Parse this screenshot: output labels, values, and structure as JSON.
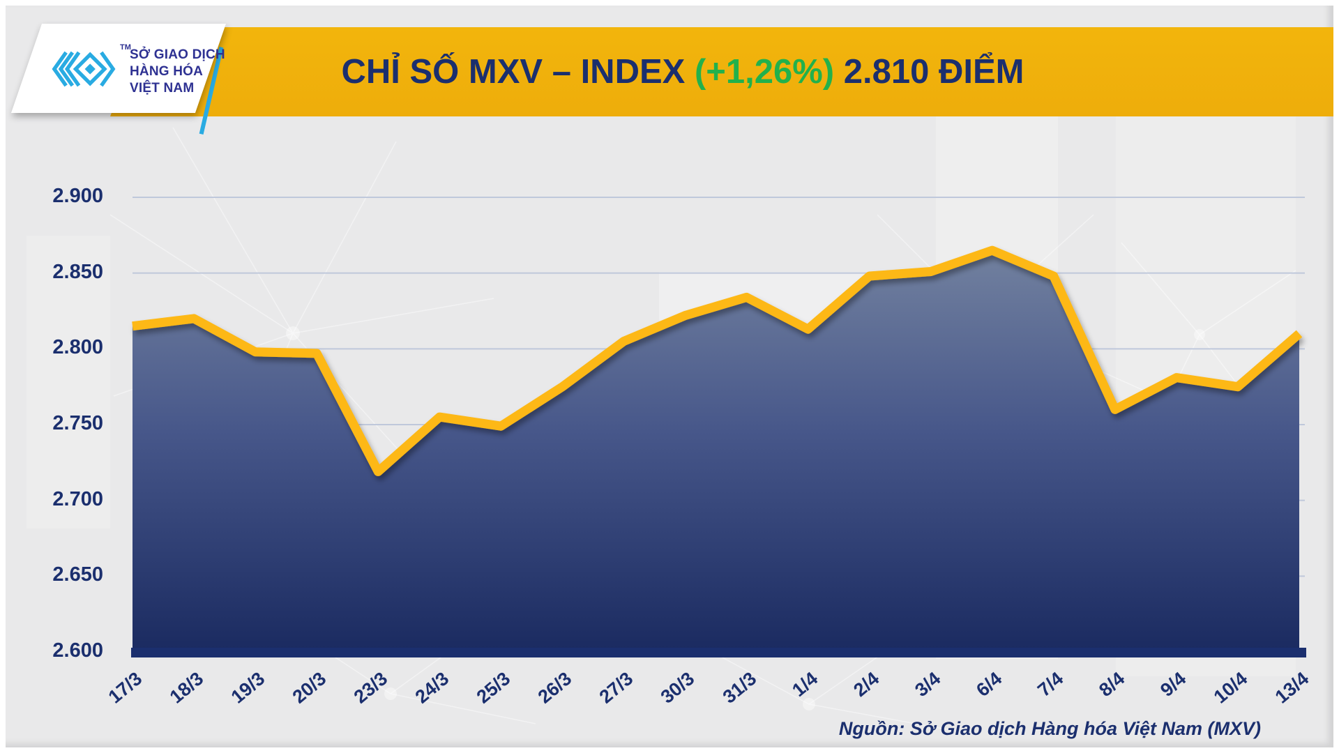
{
  "header": {
    "logo": {
      "tm": "TM",
      "line1": "SỞ GIAO DỊCH",
      "line2": "HÀNG HÓA",
      "line3": "VIỆT NAM"
    },
    "title": {
      "part1": "CHỈ SỐ MXV – INDEX ",
      "part2": "(+1,26%)",
      "part3": " 2.810 ĐIỂM"
    }
  },
  "source_note": "Nguồn: Sở Giao dịch Hàng hóa Việt Nam (MXV)",
  "chart_data": {
    "type": "area",
    "title": "CHỈ SỐ MXV – INDEX (+1,26%) 2.810 ĐIỂM",
    "change_percent": "+1,26%",
    "last_value_label": "2.810 ĐIỂM",
    "x": [
      "17/3",
      "18/3",
      "19/3",
      "20/3",
      "23/3",
      "24/3",
      "25/3",
      "26/3",
      "27/3",
      "30/3",
      "31/3",
      "1/4",
      "2/4",
      "3/4",
      "6/4",
      "7/4",
      "8/4",
      "9/4",
      "10/4",
      "13/4"
    ],
    "values": [
      2815,
      2820,
      2798,
      2797,
      2719,
      2755,
      2749,
      2775,
      2805,
      2822,
      2834,
      2813,
      2848,
      2851,
      2865,
      2848,
      2760,
      2781,
      2775,
      2810
    ],
    "ylim": [
      2600,
      2900
    ],
    "y_ticks": [
      "2.900",
      "2.850",
      "2.800",
      "2.750",
      "2.700",
      "2.650",
      "2.600"
    ],
    "tick_format": "dot-thousands",
    "grid": true,
    "legend": "none",
    "colors": {
      "line": "#fdb813",
      "banner": "#f0b00e",
      "navy": "#1b2f6e",
      "green": "#22b14c",
      "cyan": "#29abe2",
      "grid": "#bfc8db",
      "fill_top": "#72819f",
      "fill_bottom": "#1a2a60",
      "background": "#e9e9ea"
    }
  }
}
